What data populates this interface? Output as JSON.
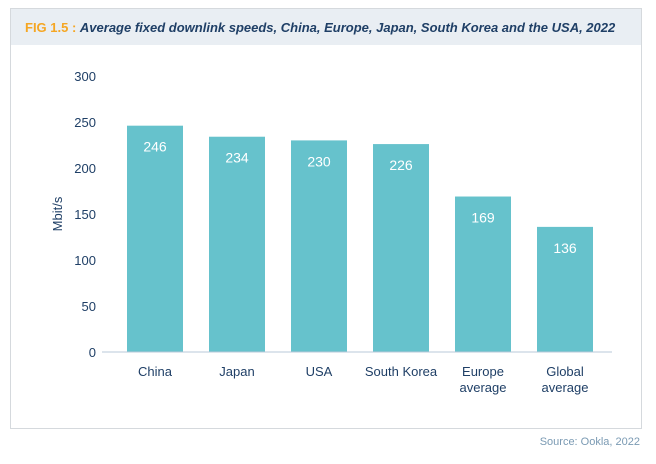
{
  "figure_label": "FIG 1.5 :",
  "source": "Source: Ookla, 2022",
  "chart_data": {
    "type": "bar",
    "title": "Average fixed downlink speeds, China, Europe, Japan, South Korea and the USA, 2022",
    "xlabel": "",
    "ylabel": "Mbit/s",
    "ylim": [
      0,
      300
    ],
    "yticks": [
      0,
      50,
      100,
      150,
      200,
      250,
      300
    ],
    "categories": [
      [
        "China"
      ],
      [
        "Japan"
      ],
      [
        "USA"
      ],
      [
        "South Korea"
      ],
      [
        "Europe",
        "average"
      ],
      [
        "Global",
        "average"
      ]
    ],
    "values": [
      246,
      234,
      230,
      226,
      169,
      136
    ],
    "grid": false,
    "bar_color": "#66c2cc",
    "label_color": "#ffffff"
  }
}
